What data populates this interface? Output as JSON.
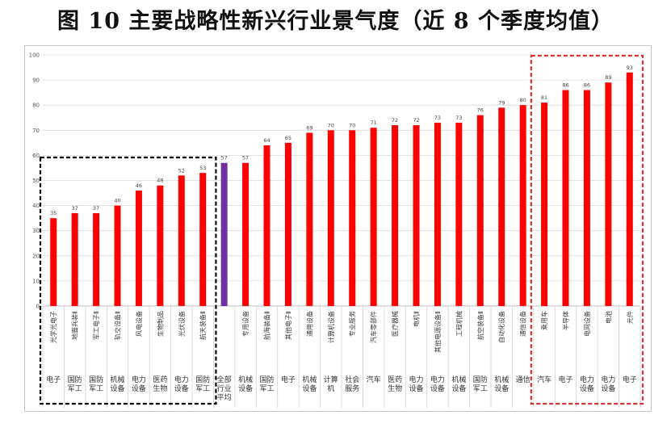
{
  "title": "图 10  主要战略性新兴行业景气度（近 8 个季度均值）",
  "chart_data": {
    "type": "bar",
    "title": "图 10  主要战略性新兴行业景气度（近 8 个季度均值）",
    "xlabel": "",
    "ylabel": "",
    "ylim": [
      0,
      100
    ],
    "yticks": [
      0,
      10,
      20,
      30,
      40,
      50,
      60,
      70,
      80,
      90,
      100
    ],
    "grid": true,
    "legend": "none",
    "colors": {
      "bar": "#ff0000",
      "average_bar": "#7030a0",
      "grid": "#d9d9d9",
      "low_box": "#000000",
      "high_box": "#e03030"
    },
    "categories": [
      {
        "sub": "光学光电子",
        "group": "电子",
        "value": 35
      },
      {
        "sub": "地面兵装Ⅱ",
        "group": "国防军工",
        "value": 37
      },
      {
        "sub": "军工电子Ⅱ",
        "group": "国防军工",
        "value": 37
      },
      {
        "sub": "轨交设备Ⅱ",
        "group": "机械设备",
        "value": 40
      },
      {
        "sub": "风电设备",
        "group": "电力设备",
        "value": 46
      },
      {
        "sub": "生物制品",
        "group": "医药生物",
        "value": 48
      },
      {
        "sub": "光伏设备",
        "group": "电力设备",
        "value": 52
      },
      {
        "sub": "航天装备Ⅱ",
        "group": "国防军工",
        "value": 53
      },
      {
        "sub": "",
        "group": "全部行业平均",
        "value": 57,
        "highlight": true
      },
      {
        "sub": "专用设备",
        "group": "机械设备",
        "value": 57
      },
      {
        "sub": "航海装备Ⅱ",
        "group": "国防军工",
        "value": 64
      },
      {
        "sub": "其他电子Ⅱ",
        "group": "电子",
        "value": 65
      },
      {
        "sub": "通用设备",
        "group": "机械设备",
        "value": 69
      },
      {
        "sub": "计算机设备",
        "group": "计算机",
        "value": 70
      },
      {
        "sub": "专业服务",
        "group": "社会服务",
        "value": 70
      },
      {
        "sub": "汽车零部件",
        "group": "汽车",
        "value": 71
      },
      {
        "sub": "医疗器械",
        "group": "医药生物",
        "value": 72
      },
      {
        "sub": "电机Ⅱ",
        "group": "电力设备",
        "value": 72
      },
      {
        "sub": "其他电源设备Ⅱ",
        "group": "电力设备",
        "value": 73
      },
      {
        "sub": "工程机械",
        "group": "机械设备",
        "value": 73
      },
      {
        "sub": "航空装备Ⅱ",
        "group": "国防军工",
        "value": 76
      },
      {
        "sub": "自动化设备",
        "group": "机械设备",
        "value": 79
      },
      {
        "sub": "通信设备",
        "group": "通信",
        "value": 80
      },
      {
        "sub": "乘用车",
        "group": "汽车",
        "value": 81
      },
      {
        "sub": "半导体",
        "group": "电子",
        "value": 86
      },
      {
        "sub": "电网设备",
        "group": "电力设备",
        "value": 86
      },
      {
        "sub": "电池",
        "group": "电力设备",
        "value": 89
      },
      {
        "sub": "元件",
        "group": "电子",
        "value": 93
      }
    ],
    "annotations": [
      {
        "style": "black-dashed-box",
        "from_index": 0,
        "to_index": 7
      },
      {
        "style": "red-dashed-box",
        "from_index": 23,
        "to_index": 27
      }
    ]
  }
}
